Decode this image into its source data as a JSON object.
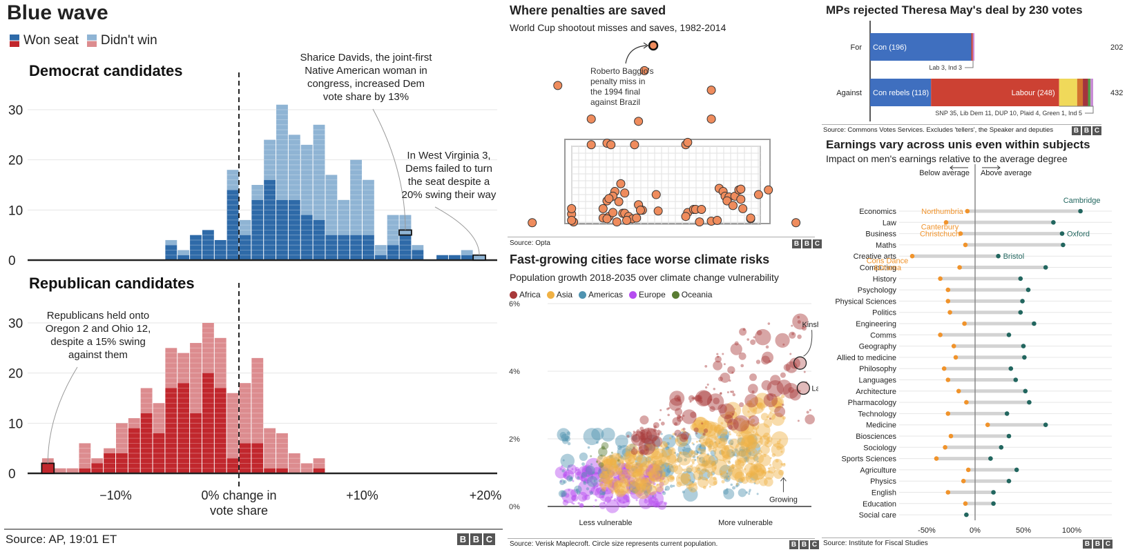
{
  "panel_blue_wave": {
    "title": "Blue wave",
    "legend": {
      "won": "Won seat",
      "lost": "Didn't win"
    },
    "source": "Source: AP, 19:01 ET",
    "logo": [
      "B",
      "B",
      "C"
    ]
  },
  "panel_penalties": {
    "title": "Where penalties are saved",
    "subtitle": "World Cup shootout misses and saves, 1982-2014",
    "annotation": [
      "Roberto Baggio's",
      "penalty miss in",
      "the 1994 final",
      "against Brazil"
    ],
    "source": "Source: Opta",
    "logo": [
      "B",
      "B",
      "C"
    ]
  },
  "panel_brexit": {
    "title": "MPs rejected Theresa May's deal by 230 votes",
    "source": "Source: Commons Votes Services. Excludes 'tellers', the Speaker and deputies",
    "logo": [
      "B",
      "B",
      "C"
    ]
  },
  "panel_cities": {
    "title": "Fast-growing cities face worse climate risks",
    "subtitle": "Population growth 2018-2035 over climate change vulnerability",
    "source": "Source: Verisk Maplecroft. Circle size represents current population.",
    "logo": [
      "B",
      "B",
      "C"
    ]
  },
  "panel_earnings": {
    "title": "Earnings vary across unis even within subjects",
    "subtitle": "Impact on men's earnings relative to the average degree",
    "source": "Source: Institute for Fiscal Studies",
    "logo": [
      "B",
      "B",
      "C"
    ]
  },
  "chart_data": [
    {
      "id": "democrats",
      "type": "bar",
      "title": "Democrat candidates",
      "xlabel": "0% change in vote share",
      "xticks": [
        "−10%",
        "0% change in",
        "+10%",
        "+20%"
      ],
      "x_tick_values": [
        -10,
        0,
        10,
        20
      ],
      "yticks": [
        0,
        10,
        20,
        30
      ],
      "ylim": [
        0,
        33
      ],
      "bin_width": 1,
      "bin_starts": [
        -6,
        -5,
        -4,
        -3,
        -2,
        -1,
        0,
        1,
        2,
        3,
        4,
        5,
        6,
        7,
        8,
        9,
        10,
        11,
        12,
        13,
        14,
        15,
        16,
        17,
        18,
        19
      ],
      "series": [
        {
          "name": "Won seat",
          "color": "#2e6aa8",
          "values": [
            3,
            1,
            5,
            6,
            4,
            14,
            5,
            12,
            16,
            12,
            12,
            9,
            8,
            5,
            5,
            5,
            5,
            1,
            3,
            5,
            2,
            0,
            1,
            1,
            1,
            0
          ]
        },
        {
          "name": "Didn't win",
          "color": "#8fb4d4",
          "values": [
            1,
            1,
            0,
            0,
            0,
            4,
            3,
            3,
            8,
            19,
            13,
            14,
            19,
            12,
            7,
            15,
            11,
            2,
            6,
            4,
            1,
            0,
            0,
            0,
            1,
            1
          ]
        }
      ],
      "annotations": [
        {
          "text": [
            "Sharice Davids, the joint-first",
            "Native American woman in",
            "congress, increased Dem",
            "vote share by 13%"
          ],
          "x": 13
        },
        {
          "text": [
            "In West Virginia 3,",
            "Dems failed to turn",
            "the seat despite a",
            "20% swing their way"
          ],
          "x": 19
        }
      ]
    },
    {
      "id": "republicans",
      "type": "bar",
      "title": "Republican candidates",
      "xlabel": "0% change in vote share",
      "xticks": [
        "−10%",
        "0% change in",
        "+10%",
        "+20%"
      ],
      "x_tick_values": [
        -10,
        0,
        10,
        20
      ],
      "xlabel_line2": "vote share",
      "yticks": [
        0,
        10,
        20,
        30
      ],
      "ylim": [
        0,
        33
      ],
      "bin_width": 1,
      "bin_starts": [
        -16,
        -15,
        -14,
        -13,
        -12,
        -11,
        -10,
        -9,
        -8,
        -7,
        -6,
        -5,
        -4,
        -3,
        -2,
        -1,
        0,
        1,
        2,
        3,
        4,
        5,
        6
      ],
      "series": [
        {
          "name": "Won seat",
          "color": "#c1272d",
          "values": [
            2,
            0,
            0,
            1,
            2,
            4,
            4,
            9,
            12,
            8,
            17,
            18,
            12,
            20,
            17,
            3,
            6,
            6,
            1,
            1,
            0,
            0,
            1
          ]
        },
        {
          "name": "Didn't win",
          "color": "#dc8c8f",
          "values": [
            1,
            1,
            1,
            5,
            1,
            1,
            6,
            2,
            5,
            6,
            8,
            6,
            14,
            10,
            10,
            13,
            12,
            17,
            8,
            7,
            4,
            2,
            2
          ]
        }
      ],
      "annotations": [
        {
          "text": [
            "Republicans held onto",
            "Oregon 2 and Ohio 12,",
            "despite a 15% swing",
            "against them"
          ],
          "x": -16
        }
      ]
    },
    {
      "id": "penalties",
      "type": "scatter",
      "title": "Where penalties are saved",
      "note": "Each point is a missed or saved World Cup shootout penalty plotted on the goal face (0-1 across, 0-1 up inside the frame)",
      "points": [
        [
          -0.18,
          0.02
        ],
        [
          0.02,
          0.13
        ],
        [
          0.02,
          0.2
        ],
        [
          0.03,
          0.03
        ],
        [
          0.02,
          0.05
        ],
        [
          0.18,
          0.2
        ],
        [
          0.2,
          0.3
        ],
        [
          0.24,
          0.42
        ],
        [
          0.23,
          0.36
        ],
        [
          0.21,
          0.33
        ],
        [
          0.27,
          0.52
        ],
        [
          0.26,
          0.29
        ],
        [
          0.29,
          0.4
        ],
        [
          0.21,
          0.1
        ],
        [
          0.18,
          0.08
        ],
        [
          0.2,
          0.07
        ],
        [
          0.23,
          0.15
        ],
        [
          0.25,
          0.03
        ],
        [
          0.28,
          0.14
        ],
        [
          0.29,
          0.14
        ],
        [
          0.31,
          0.1
        ],
        [
          0.33,
          0.07
        ],
        [
          0.35,
          0.08
        ],
        [
          0.3,
          0.05
        ],
        [
          0.36,
          0.25
        ],
        [
          0.38,
          0.18
        ],
        [
          0.37,
          0.18
        ],
        [
          0.45,
          0.38
        ],
        [
          0.46,
          0.17
        ],
        [
          0.61,
          0.15
        ],
        [
          0.6,
          0.1
        ],
        [
          0.64,
          0.19
        ],
        [
          0.65,
          0.19
        ],
        [
          0.68,
          0.19
        ],
        [
          0.67,
          0.03
        ],
        [
          0.73,
          0.04
        ],
        [
          0.76,
          0.05
        ],
        [
          0.77,
          0.46
        ],
        [
          0.79,
          0.42
        ],
        [
          0.8,
          0.36
        ],
        [
          0.82,
          0.35
        ],
        [
          0.81,
          0.3
        ],
        [
          0.84,
          0.24
        ],
        [
          0.85,
          0.36
        ],
        [
          0.87,
          0.44
        ],
        [
          0.88,
          0.45
        ],
        [
          0.88,
          0.32
        ],
        [
          0.89,
          0.2
        ],
        [
          0.93,
          0.07
        ],
        [
          0.93,
          0.08
        ],
        [
          0.97,
          0.38
        ],
        [
          1.02,
          0.44
        ],
        [
          1.16,
          0.02
        ],
        [
          0.12,
          1.02
        ],
        [
          0.2,
          1.04
        ],
        [
          0.22,
          1.02
        ],
        [
          0.34,
          1.02
        ],
        [
          0.6,
          1.02
        ],
        [
          0.61,
          1.05
        ],
        [
          0.12,
          1.35
        ],
        [
          0.36,
          1.32
        ],
        [
          -0.05,
          1.78
        ],
        [
          0.39,
          1.97
        ],
        [
          0.73,
          1.35
        ],
        [
          0.73,
          1.72
        ]
      ],
      "highlight": {
        "label": "Roberto Baggio's penalty miss in the 1994 final against Brazil",
        "point": [
          0.33,
          2.45
        ]
      }
    },
    {
      "id": "brexit_vote",
      "type": "bar",
      "orientation": "horizontal",
      "stacked": true,
      "categories": [
        "For",
        "Against"
      ],
      "totals": [
        202,
        432
      ],
      "series": [
        {
          "name": "Con",
          "color": "#3f6fbf",
          "values": [
            196,
            118
          ],
          "labels": [
            "Con (196)",
            "Con rebels (118)"
          ]
        },
        {
          "name": "Labour",
          "color": "#cc4133",
          "values": [
            3,
            248
          ],
          "labels": [
            "",
            "Labour (248)"
          ]
        },
        {
          "name": "SNP",
          "color": "#f0d95a",
          "values": [
            0,
            35
          ]
        },
        {
          "name": "Lib Dem",
          "color": "#d3732f",
          "values": [
            0,
            11
          ]
        },
        {
          "name": "DUP",
          "color": "#a3343d",
          "values": [
            0,
            10
          ]
        },
        {
          "name": "Plaid",
          "color": "#4e9a45",
          "values": [
            0,
            4
          ]
        },
        {
          "name": "Green",
          "color": "#6ab04c",
          "values": [
            0,
            1
          ]
        },
        {
          "name": "Ind",
          "color": "#c88bd6",
          "values": [
            3,
            5
          ]
        }
      ],
      "notes": [
        "Lab 3, Ind 3",
        "SNP 35, Lib Dem 11, DUP 10, Plaid 4, Green 1, Ind 5"
      ]
    },
    {
      "id": "climate_cities",
      "type": "scatter",
      "title": "Fast-growing cities face worse climate risks",
      "xlabel_left": "Less vulnerable",
      "xlabel_right": "More vulnerable",
      "yticks": [
        "0%",
        "2%",
        "4%",
        "6%"
      ],
      "ylim": [
        0,
        6
      ],
      "legend": [
        {
          "name": "Africa",
          "color": "#a8393a"
        },
        {
          "name": "Asia",
          "color": "#f0b144"
        },
        {
          "name": "Americas",
          "color": "#4f93b0"
        },
        {
          "name": "Europe",
          "color": "#b54cf0"
        },
        {
          "name": "Oceania",
          "color": "#5a7d33"
        }
      ],
      "clusters": [
        {
          "region": "Europe",
          "x_range": [
            0.05,
            0.45
          ],
          "y_range": [
            0.0,
            1.2
          ],
          "n": 160
        },
        {
          "region": "Americas",
          "x_range": [
            0.05,
            0.8
          ],
          "y_range": [
            0.3,
            2.2
          ],
          "n": 200
        },
        {
          "region": "Asia",
          "x_range": [
            0.2,
            0.9
          ],
          "y_range": [
            0.2,
            3.5
          ],
          "n": 420
        },
        {
          "region": "Africa",
          "x_range": [
            0.3,
            1.0
          ],
          "y_range": [
            1.2,
            5.6
          ],
          "n": 160
        },
        {
          "region": "Oceania",
          "x_range": [
            0.15,
            0.3
          ],
          "y_range": [
            1.2,
            1.8
          ],
          "n": 8
        }
      ],
      "labels": [
        {
          "text": "Kinshasa",
          "x": 0.97,
          "y": 4.2
        },
        {
          "text": "Lagos",
          "x": 0.98,
          "y": 3.5
        },
        {
          "text": "Growing",
          "x": 0.92,
          "y": 0.3
        }
      ]
    },
    {
      "id": "uni_earnings",
      "type": "scatter",
      "subtype": "dumbbell",
      "title": "Earnings vary across unis even within subjects",
      "xticks": [
        "-50%",
        "0%",
        "50%",
        "100%"
      ],
      "x_tick_values": [
        -50,
        0,
        50,
        100
      ],
      "xlim": [
        -80,
        140
      ],
      "direction_labels": {
        "below": "Below average",
        "above": "Above average"
      },
      "low_color": "#f0932b",
      "high_color": "#22665f",
      "categories": [
        "Economics",
        "Law",
        "Business",
        "Maths",
        "Creative arts",
        "Computing",
        "History",
        "Psychology",
        "Physical Sciences",
        "Politics",
        "Engineering",
        "Comms",
        "Geography",
        "Allied to medicine",
        "Philosophy",
        "Languages",
        "Architecture",
        "Pharmacology",
        "Technology",
        "Medicine",
        "Biosciences",
        "Sociology",
        "Sports Sciences",
        "Agriculture",
        "Physics",
        "English",
        "Education",
        "Social care"
      ],
      "low": [
        -8,
        -30,
        -15,
        -10,
        -65,
        -16,
        -36,
        -28,
        -28,
        -26,
        -11,
        -36,
        -22,
        -20,
        -32,
        -28,
        -17,
        -9,
        -28,
        13,
        -25,
        -31,
        -40,
        -7,
        -12,
        -28,
        -10,
        null
      ],
      "high": [
        109,
        81,
        90,
        91,
        24,
        73,
        47,
        55,
        49,
        47,
        61,
        35,
        50,
        51,
        37,
        42,
        52,
        56,
        33,
        73,
        35,
        27,
        16,
        43,
        35,
        19,
        19,
        -9
      ],
      "point_labels": [
        {
          "category": "Economics",
          "side": "low",
          "text": "Northumbria"
        },
        {
          "category": "Economics",
          "side": "high",
          "text": "Cambridge"
        },
        {
          "category": "Business",
          "side": "low",
          "text": "Canterbury Christchuch"
        },
        {
          "category": "Business",
          "side": "high",
          "text": "Oxford"
        },
        {
          "category": "Creative arts",
          "side": "high",
          "text": "Bristol"
        },
        {
          "category": "Computing",
          "side": "low",
          "text": "Cons Dance &Drama"
        }
      ]
    }
  ]
}
